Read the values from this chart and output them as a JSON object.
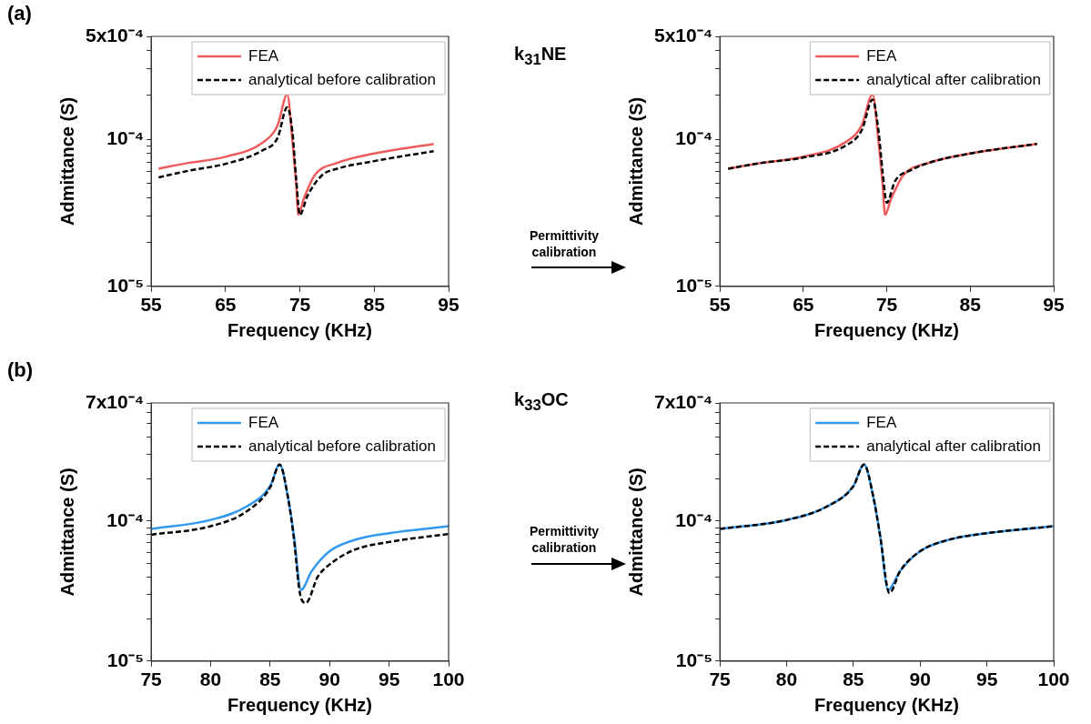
{
  "chart_data": [
    {
      "type": "line",
      "xlabel": "Frequency (KHz)",
      "ylabel": "Admittance (S)",
      "log": "y",
      "grid": false,
      "legend": "top right",
      "xlim": [
        55,
        95
      ],
      "xticks": [
        55,
        65,
        75,
        85,
        95
      ],
      "ylim": [
        1e-05,
        0.0005
      ],
      "yticks": [
        {
          "value": 1e-05,
          "label": "10⁻⁵"
        },
        {
          "value": 2e-05,
          "label": null
        },
        {
          "value": 3e-05,
          "label": null
        },
        {
          "value": 4e-05,
          "label": null
        },
        {
          "value": 5e-05,
          "label": null
        },
        {
          "value": 6e-05,
          "label": null
        },
        {
          "value": 7e-05,
          "label": null
        },
        {
          "value": 8e-05,
          "label": null
        },
        {
          "value": 9e-05,
          "label": null
        },
        {
          "value": 0.0001,
          "label": "10⁻⁴"
        },
        {
          "value": 0.0002,
          "label": null
        },
        {
          "value": 0.0003,
          "label": null
        },
        {
          "value": 0.0004,
          "label": null
        },
        {
          "value": 0.0005,
          "label": "5x10⁻⁴"
        }
      ],
      "annotations": [
        "(a)",
        "k$_{31}$NE",
        "Permittivity calibration"
      ],
      "series": [
        {
          "name": "FEA",
          "color": "#ef5b5b",
          "line_style": "solid",
          "x": [
            56,
            60,
            65,
            70,
            72,
            73.3,
            74,
            74.5,
            74.8,
            75.5,
            77,
            80,
            85,
            93
          ],
          "values": [
            6.3e-05,
            6.9e-05,
            7.6e-05,
            9.5e-05,
            0.000124,
            0.000202,
            9.7e-05,
            4.95e-05,
            3.06e-05,
            3.9e-05,
            5.7e-05,
            6.9e-05,
            8e-05,
            9.3e-05
          ]
        },
        {
          "name": "analytical before calibration",
          "color": "#000000",
          "line_style": "dashed",
          "x": [
            56,
            60,
            65,
            70,
            72,
            73.3,
            74,
            74.5,
            75,
            76,
            78,
            80,
            85,
            93
          ],
          "values": [
            5.5e-05,
            6.1e-05,
            6.8e-05,
            8.4e-05,
            0.000102,
            0.000165,
            0.000112,
            5.4e-05,
            3.06e-05,
            4.1e-05,
            5.7e-05,
            6.3e-05,
            7.1e-05,
            8.3e-05
          ]
        }
      ]
    },
    {
      "type": "line",
      "xlabel": "Frequency (KHz)",
      "ylabel": "Admittance (S)",
      "log": "y",
      "grid": false,
      "legend": "top right",
      "xlim": [
        55,
        95
      ],
      "xticks": [
        55,
        65,
        75,
        85,
        95
      ],
      "ylim": [
        1e-05,
        0.0005
      ],
      "yticks": [
        {
          "value": 1e-05,
          "label": "10⁻⁵"
        },
        {
          "value": 2e-05,
          "label": null
        },
        {
          "value": 3e-05,
          "label": null
        },
        {
          "value": 4e-05,
          "label": null
        },
        {
          "value": 5e-05,
          "label": null
        },
        {
          "value": 6e-05,
          "label": null
        },
        {
          "value": 7e-05,
          "label": null
        },
        {
          "value": 8e-05,
          "label": null
        },
        {
          "value": 9e-05,
          "label": null
        },
        {
          "value": 0.0001,
          "label": "10⁻⁴"
        },
        {
          "value": 0.0002,
          "label": null
        },
        {
          "value": 0.0003,
          "label": null
        },
        {
          "value": 0.0004,
          "label": null
        },
        {
          "value": 0.0005,
          "label": "5x10⁻⁴"
        }
      ],
      "series": [
        {
          "name": "FEA",
          "color": "#ef5b5b",
          "line_style": "solid",
          "x": [
            56,
            60,
            65,
            70,
            72,
            73.3,
            74,
            74.5,
            74.8,
            75.5,
            77,
            80,
            85,
            93
          ],
          "values": [
            6.3e-05,
            6.9e-05,
            7.6e-05,
            9.5e-05,
            0.000124,
            0.000202,
            9.7e-05,
            4.95e-05,
            3.06e-05,
            3.9e-05,
            5.7e-05,
            6.9e-05,
            8e-05,
            9.3e-05
          ]
        },
        {
          "name": "analytical after calibration",
          "color": "#000000",
          "line_style": "dashed",
          "x": [
            56,
            60,
            65,
            70,
            72,
            73.3,
            74,
            74.5,
            75,
            76,
            78,
            80,
            85,
            93
          ],
          "values": [
            6.3e-05,
            6.9e-05,
            7.5e-05,
            9e-05,
            0.000115,
            0.000186,
            0.000115,
            6e-05,
            3.7e-05,
            5.2e-05,
            6.2e-05,
            6.9e-05,
            8e-05,
            9.3e-05
          ]
        }
      ]
    },
    {
      "type": "line",
      "xlabel": "Frequency (KHz)",
      "ylabel": "Admittance (S)",
      "log": "y",
      "grid": false,
      "legend": "top right",
      "xlim": [
        75,
        100
      ],
      "xticks": [
        75,
        80,
        85,
        90,
        95,
        100
      ],
      "ylim": [
        1e-05,
        0.0007
      ],
      "yticks": [
        {
          "value": 1e-05,
          "label": "10⁻⁵"
        },
        {
          "value": 2e-05,
          "label": null
        },
        {
          "value": 3e-05,
          "label": null
        },
        {
          "value": 4e-05,
          "label": null
        },
        {
          "value": 5e-05,
          "label": null
        },
        {
          "value": 6e-05,
          "label": null
        },
        {
          "value": 7e-05,
          "label": null
        },
        {
          "value": 8e-05,
          "label": null
        },
        {
          "value": 9e-05,
          "label": null
        },
        {
          "value": 0.0001,
          "label": "10⁻⁴"
        },
        {
          "value": 0.0002,
          "label": null
        },
        {
          "value": 0.0003,
          "label": null
        },
        {
          "value": 0.0004,
          "label": null
        },
        {
          "value": 0.0005,
          "label": null
        },
        {
          "value": 0.0006,
          "label": null
        },
        {
          "value": 0.0007,
          "label": "7x10⁻⁴"
        }
      ],
      "annotations": [
        "(b)",
        "k$_{33}$OC",
        "Permittivity calibration"
      ],
      "series": [
        {
          "name": "FEA",
          "color": "#3399ee",
          "line_style": "solid",
          "x": [
            75,
            80,
            83,
            85,
            85.8,
            86.5,
            87,
            87.6,
            88.5,
            90,
            92,
            95,
            100
          ],
          "values": [
            8.8e-05,
            0.000102,
            0.000127,
            0.000178,
            0.000254,
            0.000148,
            7.9e-05,
            3.23e-05,
            4.4e-05,
            6.1e-05,
            7.3e-05,
            8.2e-05,
            9.2e-05
          ]
        },
        {
          "name": "analytical before calibration",
          "color": "#000000",
          "line_style": "dashed",
          "x": [
            75,
            80,
            83,
            85,
            85.8,
            86.5,
            87,
            87.5,
            88,
            89,
            90,
            92,
            95,
            100
          ],
          "values": [
            8e-05,
            9.2e-05,
            0.000117,
            0.000174,
            0.000254,
            0.000148,
            7.5e-05,
            3.06e-05,
            2.6e-05,
            4e-05,
            4.9e-05,
            6.2e-05,
            7.1e-05,
            8.1e-05
          ]
        }
      ]
    },
    {
      "type": "line",
      "xlabel": "Frequency (KHz)",
      "ylabel": "Admittance (S)",
      "log": "y",
      "grid": false,
      "legend": "top right",
      "xlim": [
        75,
        100
      ],
      "xticks": [
        75,
        80,
        85,
        90,
        95,
        100
      ],
      "ylim": [
        1e-05,
        0.0007
      ],
      "yticks": [
        {
          "value": 1e-05,
          "label": "10⁻⁵"
        },
        {
          "value": 2e-05,
          "label": null
        },
        {
          "value": 3e-05,
          "label": null
        },
        {
          "value": 4e-05,
          "label": null
        },
        {
          "value": 5e-05,
          "label": null
        },
        {
          "value": 6e-05,
          "label": null
        },
        {
          "value": 7e-05,
          "label": null
        },
        {
          "value": 8e-05,
          "label": null
        },
        {
          "value": 9e-05,
          "label": null
        },
        {
          "value": 0.0001,
          "label": "10⁻⁴"
        },
        {
          "value": 0.0002,
          "label": null
        },
        {
          "value": 0.0003,
          "label": null
        },
        {
          "value": 0.0004,
          "label": null
        },
        {
          "value": 0.0005,
          "label": null
        },
        {
          "value": 0.0006,
          "label": null
        },
        {
          "value": 0.0007,
          "label": "7x10⁻⁴"
        }
      ],
      "series": [
        {
          "name": "FEA",
          "color": "#3399ee",
          "line_style": "solid",
          "x": [
            75,
            80,
            83,
            85,
            85.8,
            86.5,
            87,
            87.6,
            88.5,
            90,
            92,
            95,
            100
          ],
          "values": [
            8.8e-05,
            0.000102,
            0.000127,
            0.000178,
            0.000254,
            0.000148,
            7.9e-05,
            3.23e-05,
            4.4e-05,
            6.1e-05,
            7.3e-05,
            8.2e-05,
            9.2e-05
          ]
        },
        {
          "name": "analytical after calibration",
          "color": "#000000",
          "line_style": "dashed",
          "x": [
            75,
            80,
            83,
            85,
            85.8,
            86.5,
            87,
            87.7,
            88.5,
            90,
            92,
            95,
            100
          ],
          "values": [
            8.8e-05,
            0.000102,
            0.000127,
            0.000178,
            0.000254,
            0.000148,
            7.9e-05,
            3.06e-05,
            4.4e-05,
            6.1e-05,
            7.3e-05,
            8.2e-05,
            9.2e-05
          ]
        }
      ]
    }
  ]
}
